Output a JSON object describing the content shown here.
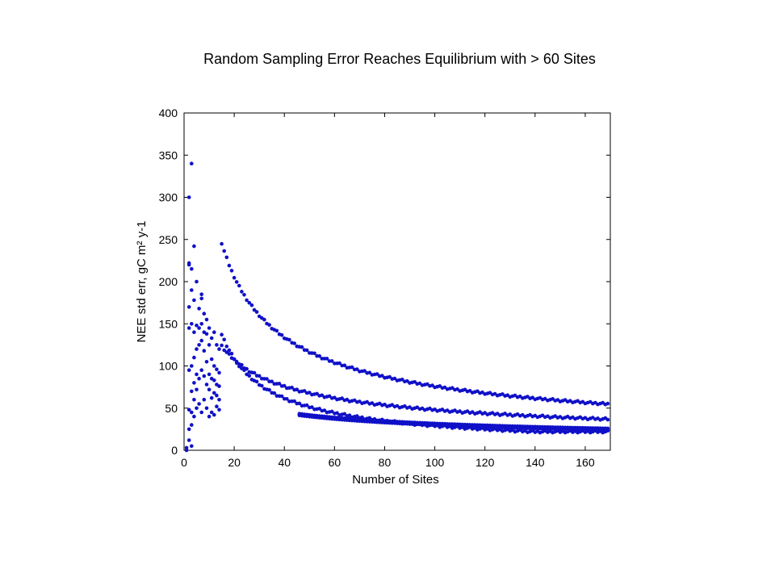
{
  "chart_data": {
    "type": "scatter",
    "title": "Random Sampling Error Reaches Equilibrium with > 60 Sites",
    "xlabel": "Number of Sites",
    "ylabel": "NEE std err, gC m² y-1",
    "xlim": [
      0,
      170
    ],
    "ylim": [
      0,
      400
    ],
    "xticks": [
      0,
      20,
      40,
      60,
      80,
      100,
      120,
      140,
      160
    ],
    "yticks": [
      0,
      50,
      100,
      150,
      200,
      250,
      300,
      350,
      400
    ],
    "grid": false,
    "marker_color": "#1010c8",
    "series": [
      {
        "points": [
          [
            1,
            0
          ],
          [
            1,
            3
          ],
          [
            2,
            12
          ],
          [
            2,
            25
          ],
          [
            2,
            48
          ],
          [
            2,
            95
          ],
          [
            2,
            145
          ],
          [
            2,
            170
          ],
          [
            2,
            220
          ],
          [
            2,
            222
          ],
          [
            2,
            300
          ],
          [
            3,
            5
          ],
          [
            3,
            30
          ],
          [
            3,
            45
          ],
          [
            3,
            70
          ],
          [
            3,
            100
          ],
          [
            3,
            150
          ],
          [
            3,
            190
          ],
          [
            3,
            215
          ],
          [
            3,
            340
          ],
          [
            4,
            40
          ],
          [
            4,
            60
          ],
          [
            4,
            80
          ],
          [
            4,
            110
          ],
          [
            4,
            140
          ],
          [
            4,
            178
          ],
          [
            4,
            242
          ],
          [
            5,
            50
          ],
          [
            5,
            72
          ],
          [
            5,
            90
          ],
          [
            5,
            120
          ],
          [
            5,
            148
          ],
          [
            5,
            200
          ],
          [
            6,
            55
          ],
          [
            6,
            85
          ],
          [
            6,
            125
          ],
          [
            6,
            145
          ],
          [
            6,
            168
          ],
          [
            7,
            45
          ],
          [
            7,
            95
          ],
          [
            7,
            130
          ],
          [
            7,
            150
          ],
          [
            7,
            180
          ],
          [
            7,
            185
          ],
          [
            8,
            60
          ],
          [
            8,
            88
          ],
          [
            8,
            118
          ],
          [
            8,
            140
          ],
          [
            8,
            162
          ],
          [
            9,
            50
          ],
          [
            9,
            78
          ],
          [
            9,
            105
          ],
          [
            9,
            138
          ],
          [
            9,
            155
          ],
          [
            10,
            40
          ],
          [
            10,
            72
          ],
          [
            10,
            90
          ],
          [
            10,
            125
          ],
          [
            10,
            145
          ],
          [
            11,
            45
          ],
          [
            11,
            62
          ],
          [
            11,
            85
          ],
          [
            11,
            108
          ],
          [
            11,
            133
          ],
          [
            12,
            42
          ],
          [
            12,
            68
          ],
          [
            12,
            83
          ],
          [
            12,
            100
          ],
          [
            12,
            140
          ],
          [
            13,
            52
          ],
          [
            13,
            65
          ],
          [
            13,
            78
          ],
          [
            13,
            96
          ],
          [
            13,
            125
          ],
          [
            14,
            48
          ],
          [
            14,
            60
          ],
          [
            14,
            76
          ],
          [
            14,
            92
          ],
          [
            14,
            120
          ]
        ]
      }
    ]
  }
}
